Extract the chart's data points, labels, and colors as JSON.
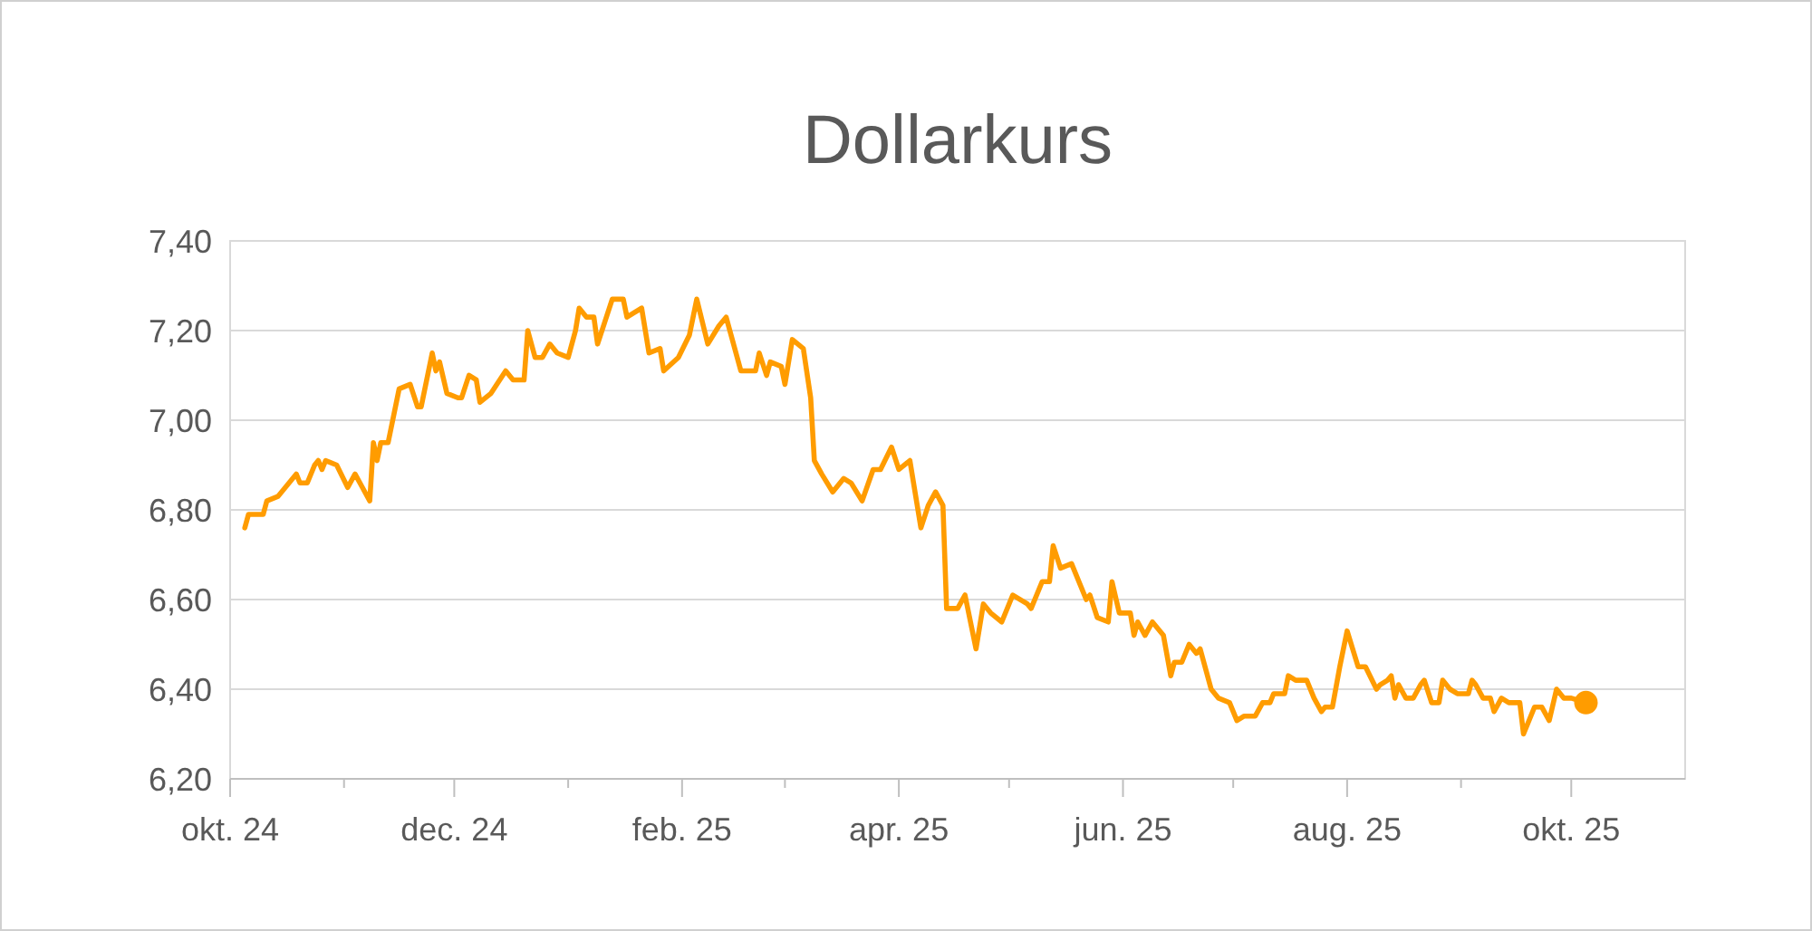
{
  "chart_data": {
    "type": "line",
    "title": "Dollarkurs",
    "x": [
      "2024-10-05",
      "2024-10-06",
      "2024-10-10",
      "2024-10-11",
      "2024-10-14",
      "2024-10-19",
      "2024-10-20",
      "2024-10-22",
      "2024-10-24",
      "2024-10-25",
      "2024-10-26",
      "2024-10-27",
      "2024-10-30",
      "2024-11-02",
      "2024-11-04",
      "2024-11-06",
      "2024-11-08",
      "2024-11-09",
      "2024-11-10",
      "2024-11-11",
      "2024-11-13",
      "2024-11-16",
      "2024-11-19",
      "2024-11-21",
      "2024-11-22",
      "2024-11-25",
      "2024-11-26",
      "2024-11-27",
      "2024-11-29",
      "2024-12-02",
      "2024-12-03",
      "2024-12-05",
      "2024-12-07",
      "2024-12-08",
      "2024-12-11",
      "2024-12-15",
      "2024-12-17",
      "2024-12-20",
      "2024-12-21",
      "2024-12-23",
      "2024-12-25",
      "2024-12-27",
      "2024-12-29",
      "2025-01-01",
      "2025-01-03",
      "2025-01-04",
      "2025-01-06",
      "2025-01-08",
      "2025-01-09",
      "2025-01-11",
      "2025-01-13",
      "2025-01-16",
      "2025-01-17",
      "2025-01-19",
      "2025-01-21",
      "2025-01-23",
      "2025-01-26",
      "2025-01-27",
      "2025-01-31",
      "2025-02-03",
      "2025-02-05",
      "2025-02-08",
      "2025-02-11",
      "2025-02-13",
      "2025-02-17",
      "2025-02-21",
      "2025-02-22",
      "2025-02-24",
      "2025-02-25",
      "2025-02-28",
      "2025-03-01",
      "2025-03-03",
      "2025-03-06",
      "2025-03-08",
      "2025-03-09",
      "2025-03-11",
      "2025-03-14",
      "2025-03-17",
      "2025-03-19",
      "2025-03-22",
      "2025-03-25",
      "2025-03-27",
      "2025-03-30",
      "2025-04-01",
      "2025-04-04",
      "2025-04-07",
      "2025-04-09",
      "2025-04-11",
      "2025-04-13",
      "2025-04-14",
      "2025-04-17",
      "2025-04-19",
      "2025-04-22",
      "2025-04-24",
      "2025-04-26",
      "2025-04-29",
      "2025-05-02",
      "2025-05-06",
      "2025-05-07",
      "2025-05-10",
      "2025-05-12",
      "2025-05-13",
      "2025-05-15",
      "2025-05-18",
      "2025-05-22",
      "2025-05-23",
      "2025-05-25",
      "2025-05-28",
      "2025-05-29",
      "2025-05-31",
      "2025-06-03",
      "2025-06-04",
      "2025-06-05",
      "2025-06-07",
      "2025-06-09",
      "2025-06-12",
      "2025-06-14",
      "2025-06-15",
      "2025-06-17",
      "2025-06-19",
      "2025-06-21",
      "2025-06-22",
      "2025-06-25",
      "2025-06-27",
      "2025-06-30",
      "2025-07-02",
      "2025-07-04",
      "2025-07-07",
      "2025-07-09",
      "2025-07-11",
      "2025-07-12",
      "2025-07-15",
      "2025-07-16",
      "2025-07-18",
      "2025-07-21",
      "2025-07-23",
      "2025-07-25",
      "2025-07-26",
      "2025-07-28",
      "2025-07-30",
      "2025-08-01",
      "2025-08-04",
      "2025-08-06",
      "2025-08-09",
      "2025-08-10",
      "2025-08-12",
      "2025-08-13",
      "2025-08-14",
      "2025-08-15",
      "2025-08-17",
      "2025-08-19",
      "2025-08-21",
      "2025-08-22",
      "2025-08-24",
      "2025-08-26",
      "2025-08-27",
      "2025-08-29",
      "2025-08-31",
      "2025-09-03",
      "2025-09-04",
      "2025-09-05",
      "2025-09-07",
      "2025-09-09",
      "2025-09-10",
      "2025-09-12",
      "2025-09-14",
      "2025-09-17",
      "2025-09-18",
      "2025-09-21",
      "2025-09-23",
      "2025-09-25",
      "2025-09-27",
      "2025-09-29",
      "2025-10-01",
      "2025-10-05"
    ],
    "series": [
      {
        "color": "#ff9c00",
        "values": [
          6.76,
          6.79,
          6.79,
          6.82,
          6.83,
          6.88,
          6.86,
          6.86,
          6.9,
          6.91,
          6.89,
          6.91,
          6.9,
          6.85,
          6.88,
          6.85,
          6.82,
          6.95,
          6.91,
          6.95,
          6.95,
          7.07,
          7.08,
          7.03,
          7.03,
          7.15,
          7.11,
          7.13,
          7.06,
          7.05,
          7.05,
          7.1,
          7.09,
          7.04,
          7.06,
          7.11,
          7.09,
          7.09,
          7.2,
          7.14,
          7.14,
          7.17,
          7.15,
          7.14,
          7.2,
          7.25,
          7.23,
          7.23,
          7.17,
          7.22,
          7.27,
          7.27,
          7.23,
          7.24,
          7.25,
          7.15,
          7.16,
          7.11,
          7.14,
          7.19,
          7.27,
          7.17,
          7.21,
          7.23,
          7.11,
          7.11,
          7.15,
          7.1,
          7.13,
          7.12,
          7.08,
          7.18,
          7.16,
          7.05,
          6.91,
          6.88,
          6.84,
          6.87,
          6.86,
          6.82,
          6.89,
          6.89,
          6.94,
          6.89,
          6.91,
          6.76,
          6.81,
          6.84,
          6.81,
          6.58,
          6.58,
          6.61,
          6.49,
          6.59,
          6.57,
          6.55,
          6.61,
          6.59,
          6.58,
          6.64,
          6.64,
          6.72,
          6.67,
          6.68,
          6.6,
          6.61,
          6.56,
          6.55,
          6.64,
          6.57,
          6.57,
          6.52,
          6.55,
          6.52,
          6.55,
          6.52,
          6.43,
          6.46,
          6.46,
          6.5,
          6.48,
          6.49,
          6.4,
          6.38,
          6.37,
          6.33,
          6.34,
          6.34,
          6.37,
          6.37,
          6.39,
          6.39,
          6.43,
          6.42,
          6.42,
          6.38,
          6.35,
          6.36,
          6.36,
          6.45,
          6.53,
          6.45,
          6.45,
          6.4,
          6.41,
          6.42,
          6.43,
          6.38,
          6.41,
          6.38,
          6.38,
          6.41,
          6.42,
          6.37,
          6.37,
          6.42,
          6.4,
          6.39,
          6.39,
          6.42,
          6.41,
          6.38,
          6.38,
          6.35,
          6.38,
          6.37,
          6.37,
          6.3,
          6.36,
          6.36,
          6.33,
          6.4,
          6.38,
          6.38,
          6.37
        ]
      },
      {
        "type": "scatter",
        "color": "#ff9c00",
        "marker": "circle",
        "x": [
          "2025-10-05"
        ],
        "values": [
          6.37
        ]
      }
    ],
    "xlim": [
      "2024-10-01",
      "2025-11-01"
    ],
    "xticks": [
      {
        "value": "2024-10-01",
        "label": "okt. 24"
      },
      {
        "value": "2024-11-01",
        "label": null
      },
      {
        "value": "2024-12-01",
        "label": "dec. 24"
      },
      {
        "value": "2025-01-01",
        "label": null
      },
      {
        "value": "2025-02-01",
        "label": "feb. 25"
      },
      {
        "value": "2025-03-01",
        "label": null
      },
      {
        "value": "2025-04-01",
        "label": "apr. 25"
      },
      {
        "value": "2025-05-01",
        "label": null
      },
      {
        "value": "2025-06-01",
        "label": "jun. 25"
      },
      {
        "value": "2025-07-01",
        "label": null
      },
      {
        "value": "2025-08-01",
        "label": "aug. 25"
      },
      {
        "value": "2025-09-01",
        "label": null
      },
      {
        "value": "2025-10-01",
        "label": "okt. 25"
      }
    ],
    "ylim": [
      6.2,
      7.4
    ],
    "yticks": [
      {
        "value": 6.2,
        "label": "6,20"
      },
      {
        "value": 6.4,
        "label": "6,40"
      },
      {
        "value": 6.6,
        "label": "6,60"
      },
      {
        "value": 6.8,
        "label": "6,80"
      },
      {
        "value": 7.0,
        "label": "7,00"
      },
      {
        "value": 7.2,
        "label": "7,20"
      },
      {
        "value": 7.4,
        "label": "7,40"
      }
    ],
    "grid": "y"
  }
}
